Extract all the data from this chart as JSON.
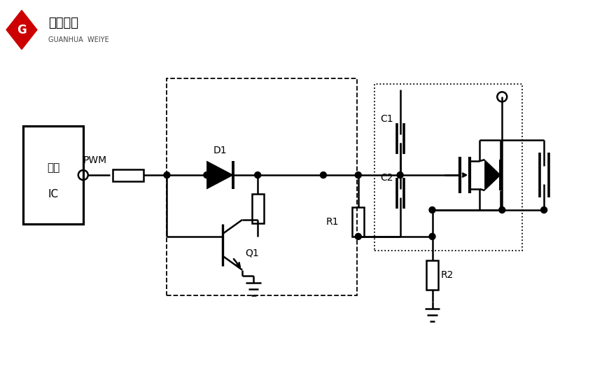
{
  "bg_color": "#ffffff",
  "line_color": "#000000",
  "lw": 1.8,
  "ic_label_1": "电源",
  "ic_label_2": "IC",
  "pwm_label": "PWM",
  "d1_label": "D1",
  "q1_label": "Q1",
  "c1_label": "C1",
  "c2_label": "C2",
  "r1_label": "R1",
  "r2_label": "R2",
  "logo_main": "冠华伟业",
  "logo_sub": "GUANHUA  WEIYE",
  "logo_g": "G",
  "logo_color": "#CC0000"
}
